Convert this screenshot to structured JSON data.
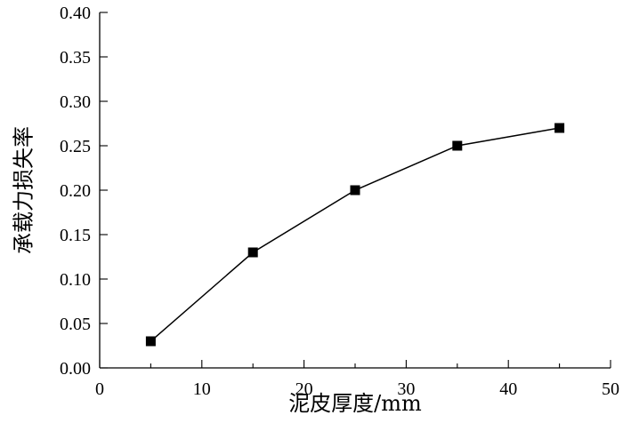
{
  "chart_data": {
    "type": "line",
    "xlabel": "泥皮厚度/mm",
    "ylabel": "承载力损失率",
    "xlim": [
      0,
      50
    ],
    "ylim": [
      0,
      0.4
    ],
    "x_ticks": [
      "0",
      "10",
      "20",
      "30",
      "40",
      "50"
    ],
    "y_ticks": [
      "0.00",
      "0.05",
      "0.10",
      "0.15",
      "0.20",
      "0.25",
      "0.30",
      "0.35",
      "0.40"
    ],
    "grid": false,
    "series": [
      {
        "x": [
          5,
          15,
          25,
          35,
          45
        ],
        "values": [
          0.03,
          0.13,
          0.2,
          0.25,
          0.27
        ],
        "marker": "square",
        "color": "#000000"
      }
    ]
  }
}
